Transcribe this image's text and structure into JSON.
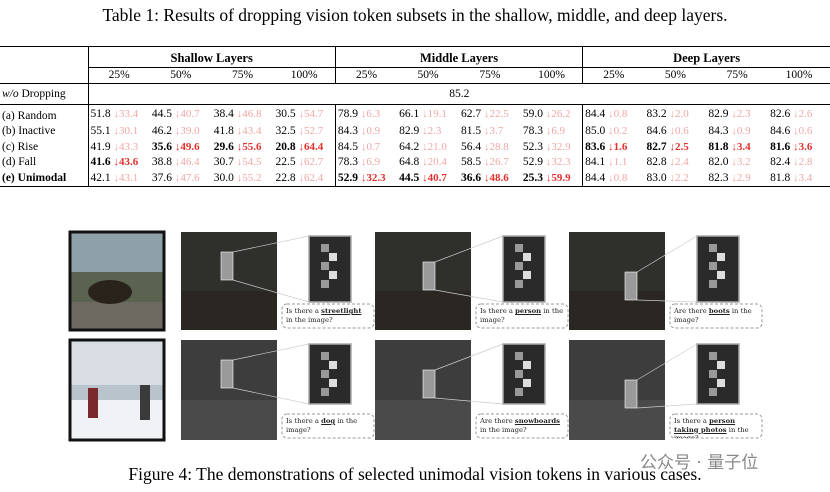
{
  "table_title": "Table 1: Results of dropping vision token subsets in the shallow, middle, and deep layers.",
  "table": {
    "groups": [
      "Shallow Layers",
      "Middle Layers",
      "Deep Layers"
    ],
    "ratios": [
      "25%",
      "50%",
      "75%",
      "100%"
    ],
    "baseline": {
      "label_italic": "w/o",
      "label": "Dropping",
      "value": "85.2"
    },
    "rows": [
      {
        "label": "(a) Random",
        "bold": false,
        "cells": [
          {
            "v": "51.8",
            "d": "↓33.4",
            "b": false
          },
          {
            "v": "44.5",
            "d": "↓40.7",
            "b": false
          },
          {
            "v": "38.4",
            "d": "↓46.8",
            "b": false
          },
          {
            "v": "30.5",
            "d": "↓54.7",
            "b": false
          },
          {
            "v": "78.9",
            "d": "↓6.3",
            "b": false
          },
          {
            "v": "66.1",
            "d": "↓19.1",
            "b": false
          },
          {
            "v": "62.7",
            "d": "↓22.5",
            "b": false
          },
          {
            "v": "59.0",
            "d": "↓26.2",
            "b": false
          },
          {
            "v": "84.4",
            "d": "↓0.8",
            "b": false
          },
          {
            "v": "83.2",
            "d": "↓2.0",
            "b": false
          },
          {
            "v": "82.9",
            "d": "↓2.3",
            "b": false
          },
          {
            "v": "82.6",
            "d": "↓2.6",
            "b": false
          }
        ]
      },
      {
        "label": "(b) Inactive",
        "bold": false,
        "cells": [
          {
            "v": "55.1",
            "d": "↓30.1",
            "b": false
          },
          {
            "v": "46.2",
            "d": "↓39.0",
            "b": false
          },
          {
            "v": "41.8",
            "d": "↓43.4",
            "b": false
          },
          {
            "v": "32.5",
            "d": "↓52.7",
            "b": false
          },
          {
            "v": "84.3",
            "d": "↓0.9",
            "b": false
          },
          {
            "v": "82.9",
            "d": "↓2.3",
            "b": false
          },
          {
            "v": "81.5",
            "d": "↓3.7",
            "b": false
          },
          {
            "v": "78.3",
            "d": "↓6.9",
            "b": false
          },
          {
            "v": "85.0",
            "d": "↓0.2",
            "b": false
          },
          {
            "v": "84.6",
            "d": "↓0.6",
            "b": false
          },
          {
            "v": "84.3",
            "d": "↓0.9",
            "b": false
          },
          {
            "v": "84.6",
            "d": "↓0.6",
            "b": false
          }
        ]
      },
      {
        "label": "(c) Rise",
        "bold": false,
        "cells": [
          {
            "v": "41.9",
            "d": "↓43.3",
            "b": false
          },
          {
            "v": "35.6",
            "d": "↓49.6",
            "b": true
          },
          {
            "v": "29.6",
            "d": "↓55.6",
            "b": true
          },
          {
            "v": "20.8",
            "d": "↓64.4",
            "b": true
          },
          {
            "v": "84.5",
            "d": "↓0.7",
            "b": false
          },
          {
            "v": "64.2",
            "d": "↓21.0",
            "b": false
          },
          {
            "v": "56.4",
            "d": "↓28.8",
            "b": false
          },
          {
            "v": "52.3",
            "d": "↓32.9",
            "b": false
          },
          {
            "v": "83.6",
            "d": "↓1.6",
            "b": true
          },
          {
            "v": "82.7",
            "d": "↓2.5",
            "b": true
          },
          {
            "v": "81.8",
            "d": "↓3.4",
            "b": true
          },
          {
            "v": "81.6",
            "d": "↓3.6",
            "b": true
          }
        ]
      },
      {
        "label": "(d) Fall",
        "bold": false,
        "cells": [
          {
            "v": "41.6",
            "d": "↓43.6",
            "b": true
          },
          {
            "v": "38.8",
            "d": "↓46.4",
            "b": false
          },
          {
            "v": "30.7",
            "d": "↓54.5",
            "b": false
          },
          {
            "v": "22.5",
            "d": "↓62.7",
            "b": false
          },
          {
            "v": "78.3",
            "d": "↓6.9",
            "b": false
          },
          {
            "v": "64.8",
            "d": "↓20.4",
            "b": false
          },
          {
            "v": "58.5",
            "d": "↓26.7",
            "b": false
          },
          {
            "v": "52.9",
            "d": "↓32.3",
            "b": false
          },
          {
            "v": "84.1",
            "d": "↓1.1",
            "b": false
          },
          {
            "v": "82.8",
            "d": "↓2.4",
            "b": false
          },
          {
            "v": "82.0",
            "d": "↓3.2",
            "b": false
          },
          {
            "v": "82.4",
            "d": "↓2.8",
            "b": false
          }
        ]
      },
      {
        "label": "(e) Unimodal",
        "bold": true,
        "cells": [
          {
            "v": "42.1",
            "d": "↓43.1",
            "b": false
          },
          {
            "v": "37.6",
            "d": "↓47.6",
            "b": false
          },
          {
            "v": "30.0",
            "d": "↓55.2",
            "b": false
          },
          {
            "v": "22.8",
            "d": "↓62.4",
            "b": false
          },
          {
            "v": "52.9",
            "d": "↓32.3",
            "b": true
          },
          {
            "v": "44.5",
            "d": "↓40.7",
            "b": true
          },
          {
            "v": "36.6",
            "d": "↓48.6",
            "b": true
          },
          {
            "v": "25.3",
            "d": "↓59.9",
            "b": true
          },
          {
            "v": "84.4",
            "d": "↓0.8",
            "b": false
          },
          {
            "v": "83.0",
            "d": "↓2.2",
            "b": false
          },
          {
            "v": "82.3",
            "d": "↓2.9",
            "b": false
          },
          {
            "v": "81.8",
            "d": "↓3.4",
            "b": false
          }
        ]
      }
    ]
  },
  "figure": {
    "rows": [
      {
        "panels": [
          {
            "pre": "Is there a ",
            "key": "streetlight",
            "post": " in the image?"
          },
          {
            "pre": "Is there a ",
            "key": "person",
            "post": " in the image?"
          },
          {
            "pre": "Are there ",
            "key": "boots",
            "post": " in the image?"
          }
        ]
      },
      {
        "panels": [
          {
            "pre": "Is there a ",
            "key": "dog",
            "post": " in the image?"
          },
          {
            "pre": "Are there ",
            "key": "snowboards",
            "post": " in the image?"
          },
          {
            "pre": "Is there a ",
            "key": "person taking photos",
            "post": " in the image?"
          }
        ]
      }
    ],
    "caption": "Figure 4: The demonstrations of selected unimodal vision tokens in various cases.",
    "watermark": "公众号 · 量子位"
  }
}
